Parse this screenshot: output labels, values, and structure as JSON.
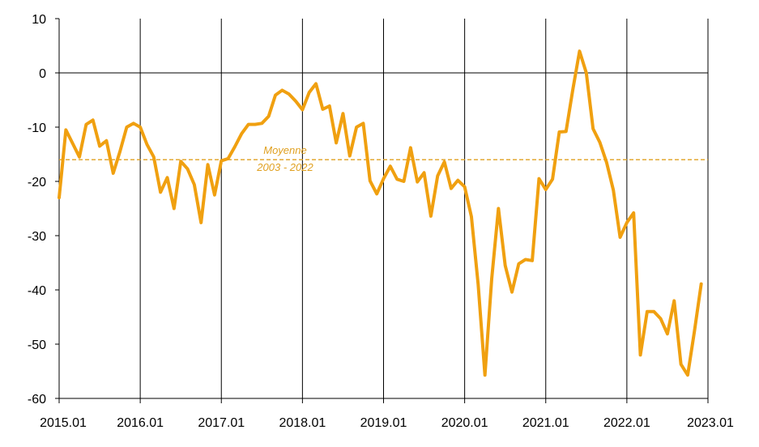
{
  "chart_data": {
    "type": "line",
    "title": "",
    "xlabel": "",
    "ylabel": "",
    "ylim": [
      -60,
      10
    ],
    "yticks": [
      10,
      0,
      -10,
      -20,
      -30,
      -40,
      -50,
      -60
    ],
    "x_tick_labels": [
      "2015.01",
      "2016.01",
      "2017.01",
      "2018.01",
      "2019.01",
      "2020.01",
      "2021.01",
      "2022.01",
      "2023.01"
    ],
    "vertical_gridlines": "yearly",
    "line_color": "#F0A010",
    "series": [
      {
        "x_start": "2015.01",
        "frequency": "monthly",
        "values": [
          -23,
          -10.5,
          -13,
          -15.5,
          -9.5,
          -8.7,
          -13.5,
          -12.5,
          -18.5,
          -14.5,
          -10,
          -9.3,
          -10,
          -13.2,
          -15.5,
          -22,
          -19.3,
          -25,
          -16.3,
          -17.7,
          -20.6,
          -27.6,
          -16.9,
          -22.5,
          -16.2,
          -15.8,
          -13.6,
          -11.2,
          -9.5,
          -9.5,
          -9.3,
          -8,
          -4.1,
          -3.2,
          -3.9,
          -5.2,
          -6.8,
          -3.6,
          -2,
          -6.7,
          -6.1,
          -12.9,
          -7.5,
          -15.3,
          -10,
          -9.3,
          -19.9,
          -22.3,
          -19.5,
          -17.2,
          -19.6,
          -20,
          -13.8,
          -20.1,
          -18.4,
          -26.4,
          -19,
          -16.4,
          -21.3,
          -19.8,
          -21,
          -26.5,
          -39,
          -55.7,
          -38,
          -25,
          -35.5,
          -40.4,
          -35.2,
          -34.4,
          -34.6,
          -19.5,
          -21.5,
          -19.6,
          -10.9,
          -10.8,
          -3.1,
          4,
          0,
          -10.3,
          -12.8,
          -16.5,
          -21.6,
          -30.3,
          -27.6,
          -25.8,
          -52,
          -44,
          -44,
          -45.3,
          -48.1,
          -42,
          -53.7,
          -55.7,
          -47.6,
          -38.9
        ]
      }
    ],
    "reference_line": {
      "value": -16,
      "label_line1": "Moyenne",
      "label_line2": "2003 - 2022",
      "color": "#E0A020",
      "style": "dashed"
    }
  }
}
